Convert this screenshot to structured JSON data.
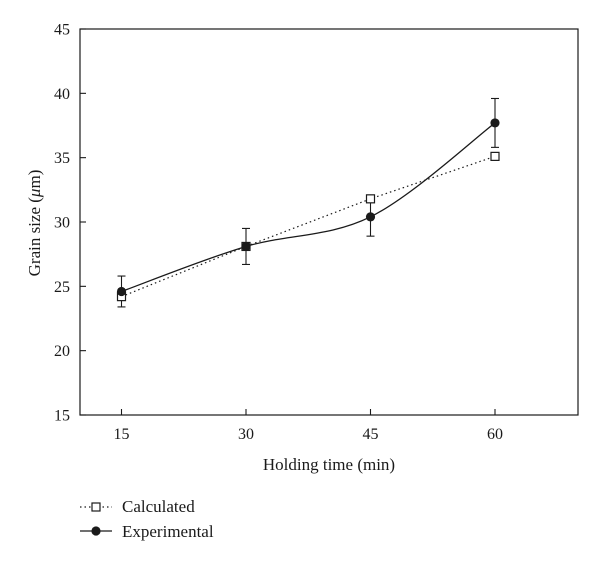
{
  "chart_data": {
    "type": "line",
    "title": "",
    "xlabel": "Holding time (min)",
    "ylabel": "Grain size (μm)",
    "ylabel_parts": {
      "before": "Grain size (",
      "mu": "μ",
      "after": "m)"
    },
    "x": [
      15,
      30,
      45,
      60
    ],
    "xticks": [
      15,
      30,
      45,
      60
    ],
    "xtick_labels": [
      "15",
      "30",
      "45",
      "60"
    ],
    "yticks": [
      15,
      20,
      25,
      30,
      35,
      40,
      45
    ],
    "ytick_labels": [
      "15",
      "20",
      "25",
      "30",
      "35",
      "40",
      "45"
    ],
    "xlim": [
      10,
      70
    ],
    "ylim": [
      15,
      45
    ],
    "grid": false,
    "legend_position": "bottom-left, outside plot",
    "series": [
      {
        "name": "Calculated",
        "values": [
          24.2,
          28.1,
          31.8,
          35.1
        ],
        "line_style": "dotted",
        "marker": "open-square",
        "color": "#1a1a1a"
      },
      {
        "name": "Experimental",
        "values": [
          24.6,
          28.1,
          30.4,
          37.7
        ],
        "error_low": [
          23.4,
          26.7,
          28.9,
          35.8
        ],
        "error_high": [
          25.8,
          29.5,
          31.8,
          39.6
        ],
        "line_style": "solid-smooth",
        "marker": "filled-circle",
        "color": "#1a1a1a"
      }
    ]
  }
}
